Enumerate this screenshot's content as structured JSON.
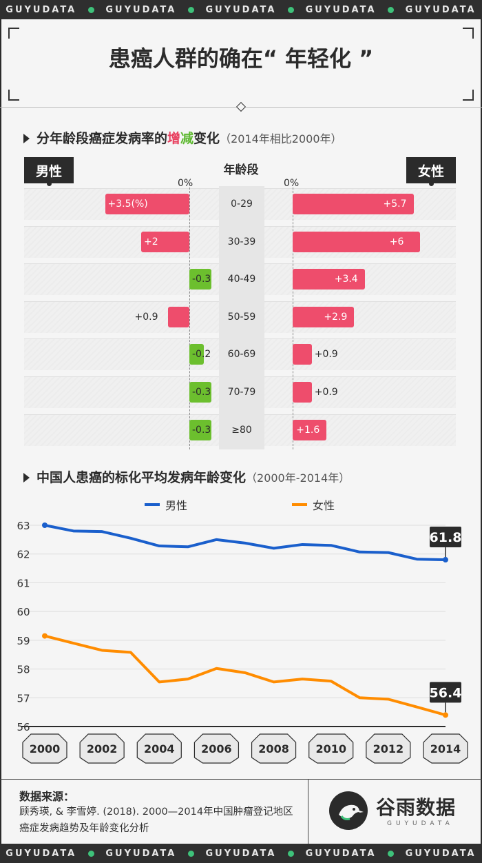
{
  "ticker": {
    "words": [
      "GUYUDATA",
      "GUYUDATA",
      "GUYUDATA",
      "GUYUDATA",
      "GUYUDATA"
    ]
  },
  "title": "患癌人群的确在“ 年轻化 ”",
  "section1": {
    "title_a": "分年龄段癌症发病率的",
    "title_inc": "增",
    "title_dec": "减",
    "title_b": "变化",
    "subtitle": "（2014年相比2000年）"
  },
  "male_tag": "男性",
  "female_tag": "女性",
  "age_header": "年龄段",
  "zero_label": "0%",
  "colors": {
    "increase": "#ee4d6c",
    "decrease": "#6cbf2e",
    "male_line": "#1a5fcc",
    "female_line": "#ff8c00"
  },
  "chart_data": [
    {
      "type": "bar",
      "categories": [
        "0-29",
        "30-39",
        "40-49",
        "50-59",
        "60-69",
        "70-79",
        "≥80"
      ],
      "series": [
        {
          "name": "男性",
          "values": [
            3.5,
            2,
            -0.3,
            0.9,
            -0.2,
            -0.3,
            -0.3
          ],
          "labels": [
            "+3.5(%)",
            "+2",
            "-0.3",
            "+0.9",
            "-0.2",
            "-0.3",
            "-0.3"
          ]
        },
        {
          "name": "女性",
          "values": [
            5.7,
            6,
            3.4,
            2.9,
            0.9,
            0.9,
            1.6
          ],
          "labels": [
            "+5.7",
            "+6",
            "+3.4",
            "+2.9",
            "+0.9",
            "+0.9",
            "+1.6"
          ]
        }
      ]
    },
    {
      "type": "line",
      "title": "中国人患癌的标化平均发病年龄变化",
      "subtitle": "（2000年-2014年）",
      "x": [
        2000,
        2001,
        2002,
        2003,
        2004,
        2005,
        2006,
        2007,
        2008,
        2009,
        2010,
        2011,
        2012,
        2013,
        2014
      ],
      "x_tick_labels": [
        "2000",
        "2002",
        "2004",
        "2006",
        "2008",
        "2010",
        "2012",
        "2014"
      ],
      "y_ticks": [
        "56",
        "57",
        "58",
        "59",
        "60",
        "61",
        "62",
        "63"
      ],
      "ylim": [
        56,
        63
      ],
      "series": [
        {
          "name": "男性",
          "values": [
            63.0,
            62.8,
            62.78,
            62.55,
            62.28,
            62.25,
            62.5,
            62.38,
            62.2,
            62.33,
            62.3,
            62.07,
            62.05,
            61.82,
            61.8
          ]
        },
        {
          "name": "女性",
          "values": [
            59.15,
            58.9,
            58.65,
            58.58,
            57.55,
            57.65,
            58.02,
            57.87,
            57.55,
            57.65,
            57.58,
            57.0,
            56.95,
            56.68,
            56.4
          ]
        }
      ],
      "end_labels": [
        "61.8",
        "56.4"
      ]
    }
  ],
  "source": {
    "heading": "数据来源：",
    "text": "顾秀瑛, & 李雪婷. (2018). 2000—2014年中国肿瘤登记地区癌症发病趋势及年龄变化分析"
  },
  "logo": {
    "name": "谷雨数据",
    "sub": "GUYUDATA"
  }
}
